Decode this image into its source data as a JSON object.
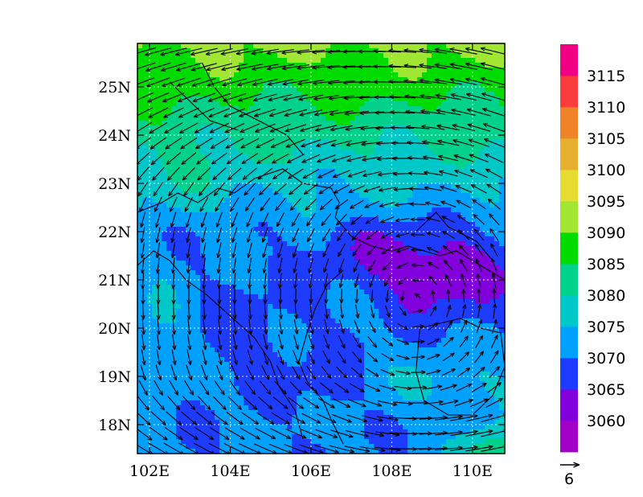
{
  "map": {
    "x_axis": {
      "ticks": [
        {
          "value": 102,
          "label": "102E"
        },
        {
          "value": 104,
          "label": "104E"
        },
        {
          "value": 106,
          "label": "106E"
        },
        {
          "value": 108,
          "label": "108E"
        },
        {
          "value": 110,
          "label": "110E"
        }
      ]
    },
    "y_axis": {
      "ticks": [
        {
          "value": 18,
          "label": "18N"
        },
        {
          "value": 19,
          "label": "19N"
        },
        {
          "value": 20,
          "label": "20N"
        },
        {
          "value": 21,
          "label": "21N"
        },
        {
          "value": 22,
          "label": "22N"
        },
        {
          "value": 23,
          "label": "23N"
        },
        {
          "value": 24,
          "label": "24N"
        },
        {
          "value": 25,
          "label": "25N"
        }
      ]
    },
    "lon_range": [
      101.7,
      110.8
    ],
    "lat_range": [
      17.4,
      25.9
    ],
    "gridlines": "dotted",
    "field": "shaded contours",
    "vectors": "wind arrows",
    "vector_reference": {
      "label": "6"
    }
  },
  "colorbar": {
    "labels": [
      "3060",
      "3065",
      "3070",
      "3075",
      "3080",
      "3085",
      "3090",
      "3095",
      "3100",
      "3105",
      "3110",
      "3115"
    ],
    "colors": [
      "#a000c8",
      "#8200dc",
      "#1e3cff",
      "#00a0ff",
      "#00c8c8",
      "#00d28c",
      "#00dc00",
      "#a0e632",
      "#e6dc32",
      "#e6af2d",
      "#f08228",
      "#fa3c3c",
      "#f00082"
    ]
  },
  "chart_data": {
    "type": "heatmap",
    "xlabel": "",
    "ylabel": "",
    "xlim": [
      101.7,
      110.8
    ],
    "ylim": [
      17.4,
      25.9
    ],
    "levels": [
      3060,
      3065,
      3070,
      3075,
      3080,
      3085,
      3090,
      3095,
      3100,
      3105,
      3110,
      3115
    ],
    "colors": [
      "#a000c8",
      "#8200dc",
      "#1e3cff",
      "#00a0ff",
      "#00c8c8",
      "#00d28c",
      "#00dc00",
      "#a0e632",
      "#e6dc32",
      "#e6af2d",
      "#f08228",
      "#fa3c3c",
      "#f00082"
    ],
    "reference_vector": 6,
    "grid": true,
    "legend": "right colorbar"
  }
}
